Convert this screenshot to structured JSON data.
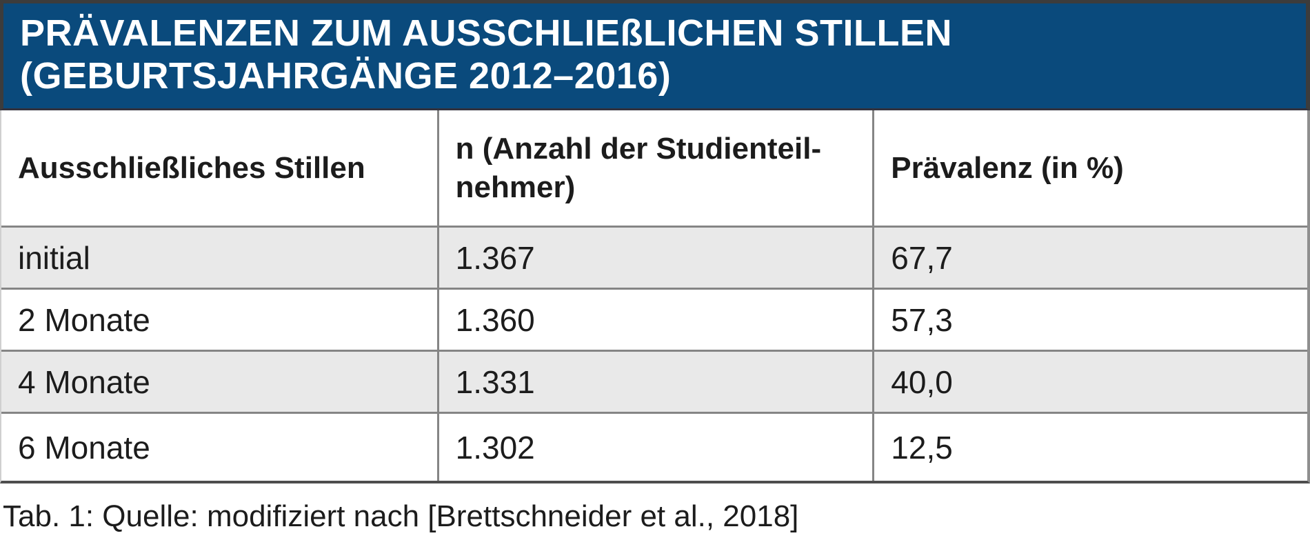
{
  "title": {
    "line1": "PRÄVALENZEN ZUM AUSSCHLIEßLICHEN STILLEN",
    "line2": "(GEBURTSJAHRGÄNGE 2012–2016)"
  },
  "table": {
    "columns": [
      "Ausschließliches Stillen",
      "n (Anzahl der Studienteil-\nnehmer)",
      "Prävalenz (in %)"
    ],
    "rows": [
      {
        "label": "initial",
        "n": "1.367",
        "prevalence": "67,7"
      },
      {
        "label": "2 Monate",
        "n": "1.360",
        "prevalence": "57,3"
      },
      {
        "label": "4 Monate",
        "n": "1.331",
        "prevalence": "40,0"
      },
      {
        "label": "6 Monate",
        "n": "1.302",
        "prevalence": "12,5"
      }
    ]
  },
  "caption": "Tab. 1: Quelle: modifiziert nach [Brettschneider et al., 2018]",
  "colors": {
    "header_bg": "#0a4a7c",
    "row_alt_bg": "#e9e9e9",
    "grid_border": "#858585",
    "frame_border": "#3c3c3c"
  },
  "chart_data": {
    "type": "table",
    "title": "Prävalenzen zum ausschließlichen Stillen (Geburtsjahrgänge 2012–2016)",
    "columns": [
      "Ausschließliches Stillen",
      "n (Anzahl der Studienteilnehmer)",
      "Prävalenz (in %)"
    ],
    "categories": [
      "initial",
      "2 Monate",
      "4 Monate",
      "6 Monate"
    ],
    "series": [
      {
        "name": "n (Anzahl der Studienteilnehmer)",
        "values": [
          1367,
          1360,
          1331,
          1302
        ]
      },
      {
        "name": "Prävalenz (in %)",
        "values": [
          67.7,
          57.3,
          40.0,
          12.5
        ]
      }
    ],
    "source": "Tab. 1: Quelle: modifiziert nach [Brettschneider et al., 2018]"
  }
}
